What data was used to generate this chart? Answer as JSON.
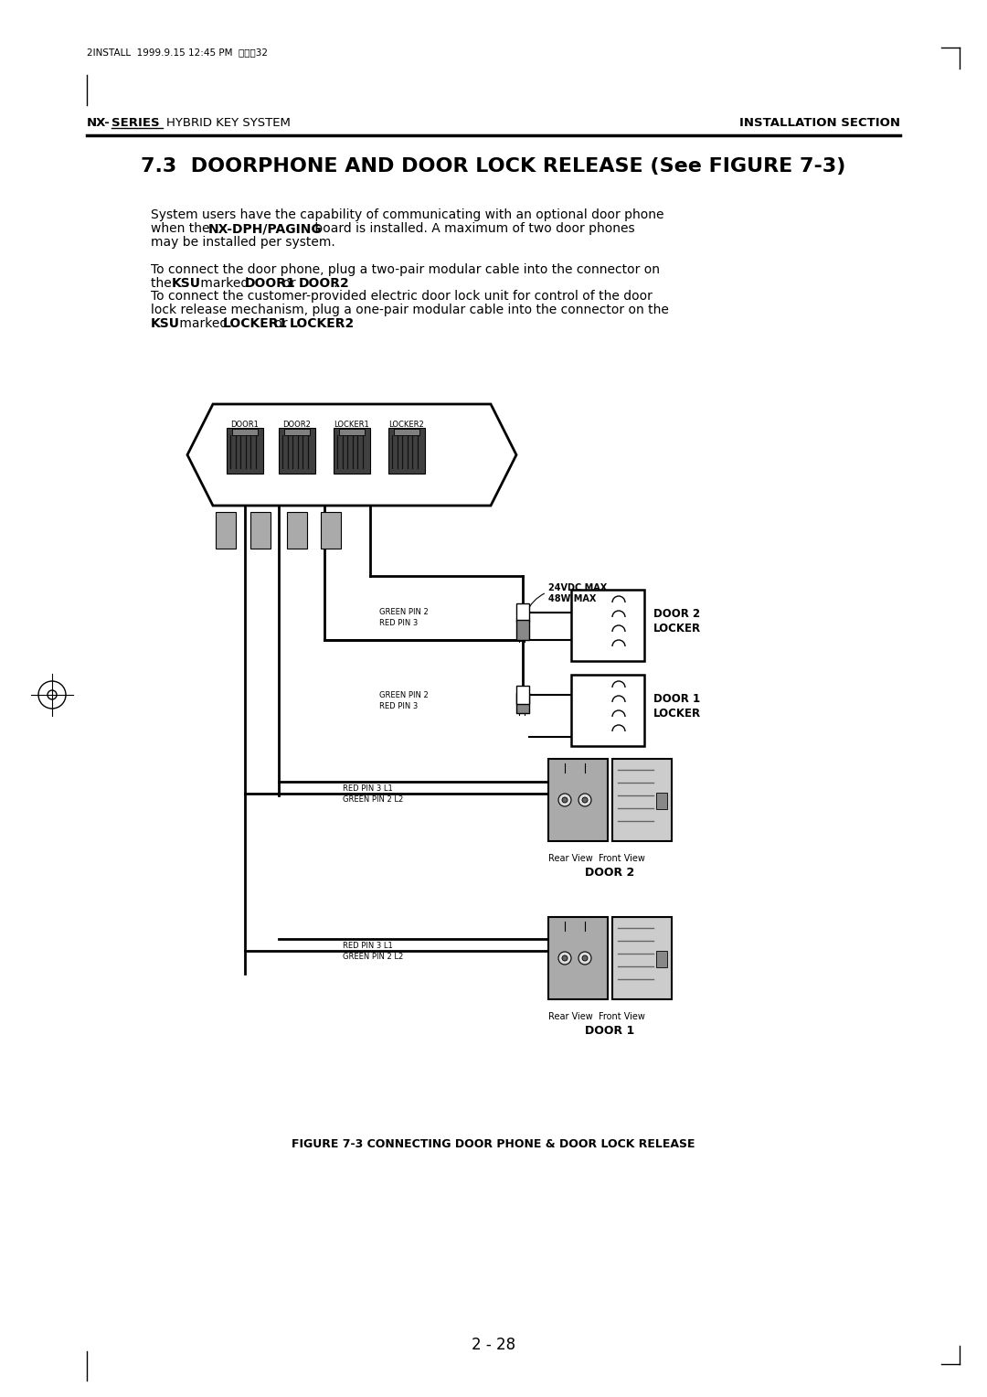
{
  "bg_color": "#ffffff",
  "page_header": "2INSTALL  1999.9.15 12:45 PM  페이지32",
  "figure_caption": "FIGURE 7-3 CONNECTING DOOR PHONE & DOOR LOCK RELEASE",
  "page_number": "2 - 28"
}
